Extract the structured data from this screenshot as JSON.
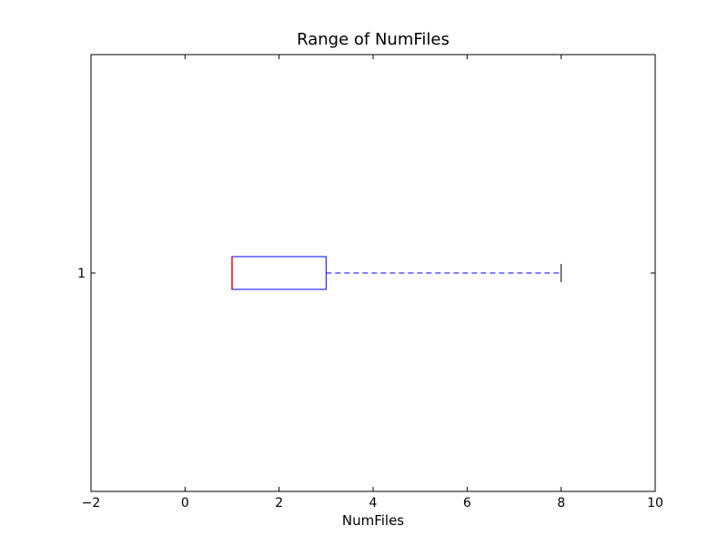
{
  "chart_data": {
    "type": "boxplot",
    "orientation": "horizontal",
    "title": "Range of NumFiles",
    "xlabel": "NumFiles",
    "ylabel": "",
    "xlim": [
      -2,
      10
    ],
    "x_ticks": [
      -2,
      0,
      2,
      4,
      6,
      8,
      10
    ],
    "x_tick_labels": [
      "−2",
      "0",
      "2",
      "4",
      "6",
      "8",
      "10"
    ],
    "y_ticks": [
      1
    ],
    "y_tick_labels": [
      "1"
    ],
    "grid": false,
    "boxes": [
      {
        "position": 1,
        "whisker_low": 1,
        "q1": 1,
        "median": 1,
        "q3": 3,
        "whisker_high": 8
      }
    ],
    "colors": {
      "box": "#0000ff",
      "whisker": "#0000ff",
      "median": "#ff0000",
      "cap": "#000000",
      "axes": "#000000"
    }
  }
}
